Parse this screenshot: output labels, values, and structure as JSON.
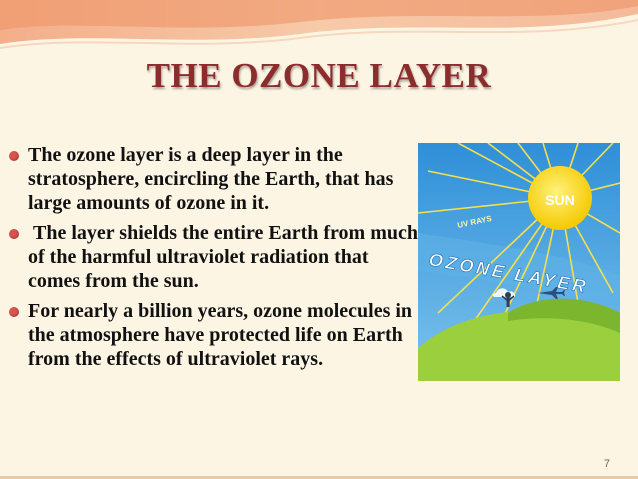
{
  "slide": {
    "title": "THE OZONE LAYER",
    "bullets": [
      "The ozone layer is a deep layer in the stratosphere, encircling the Earth, that has large amounts of ozone in it.",
      " The layer shields the entire Earth from much of the harmful ultraviolet radiation that comes from the sun.",
      "For nearly a billion years, ozone molecules in the atmosphere have protected life on Earth from the effects of ultraviolet rays."
    ],
    "page_number": "7"
  },
  "illustration": {
    "sun_label": "SUN",
    "uv_label": "UV RAYS",
    "ozone_label": "OZONE LAYER"
  },
  "colors": {
    "background": "#fdf5e4",
    "title": "#8c2c2c",
    "bullet": "#d9534f",
    "sky": "#4aa3df",
    "sun": "#f7d417",
    "ground": "#9bcf3e"
  }
}
